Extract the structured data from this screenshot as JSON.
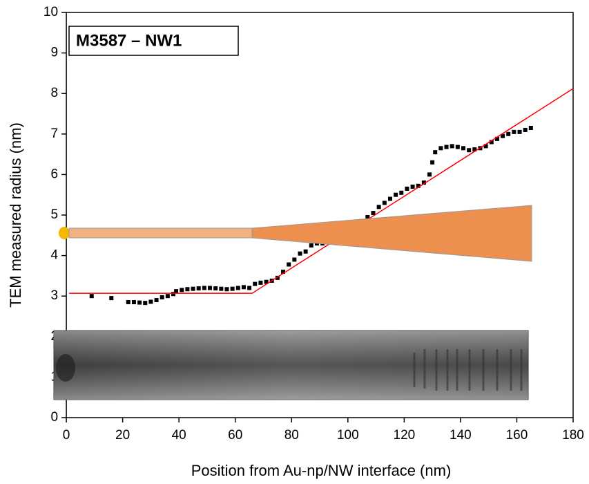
{
  "chart_data": {
    "type": "scatter",
    "annotation": "M3587 – NW1",
    "xlabel": "Position from Au-np/NW interface (nm)",
    "ylabel": "TEM measured radius (nm)",
    "xlim": [
      -1,
      180
    ],
    "xticks": [
      0,
      20,
      40,
      60,
      80,
      100,
      120,
      140,
      160,
      180
    ],
    "ylim": [
      0,
      10
    ],
    "yticks": [
      0,
      1,
      2,
      3,
      4,
      5,
      6,
      7,
      8,
      9,
      10
    ],
    "series": [
      {
        "color": "#000000",
        "marker": "square",
        "x": [
          9,
          16,
          22,
          24,
          26,
          28,
          30,
          32,
          34,
          36,
          38,
          39,
          41,
          43,
          45,
          47,
          49,
          51,
          53,
          55,
          57,
          59,
          61,
          63,
          65,
          67,
          69,
          71,
          73,
          75,
          77,
          79,
          81,
          83,
          85,
          87,
          89,
          91,
          93,
          95,
          97,
          99,
          101,
          103,
          105,
          107,
          109,
          111,
          113,
          115,
          117,
          119,
          121,
          123,
          125,
          127,
          129,
          130,
          131,
          133,
          135,
          137,
          139,
          141,
          143,
          145,
          147,
          149,
          151,
          153,
          155,
          157,
          159,
          161,
          163,
          165
        ],
        "values": [
          3.0,
          2.95,
          2.85,
          2.85,
          2.84,
          2.83,
          2.86,
          2.9,
          2.97,
          3.0,
          3.05,
          3.12,
          3.15,
          3.17,
          3.18,
          3.19,
          3.2,
          3.2,
          3.19,
          3.18,
          3.17,
          3.18,
          3.2,
          3.22,
          3.2,
          3.3,
          3.33,
          3.35,
          3.38,
          3.45,
          3.6,
          3.78,
          3.9,
          4.05,
          4.1,
          4.25,
          4.3,
          4.3,
          4.35,
          4.4,
          4.45,
          4.55,
          4.65,
          4.75,
          4.85,
          4.95,
          5.05,
          5.2,
          5.3,
          5.4,
          5.5,
          5.55,
          5.65,
          5.7,
          5.72,
          5.8,
          6.0,
          6.3,
          6.55,
          6.65,
          6.68,
          6.7,
          6.68,
          6.65,
          6.6,
          6.62,
          6.65,
          6.7,
          6.8,
          6.88,
          6.95,
          7.0,
          7.05,
          7.05,
          7.1,
          7.15
        ]
      },
      {
        "color": "#ff0000",
        "marker": "line",
        "x": [
          1,
          66,
          180
        ],
        "values": [
          3.07,
          3.07,
          8.12
        ]
      }
    ]
  }
}
